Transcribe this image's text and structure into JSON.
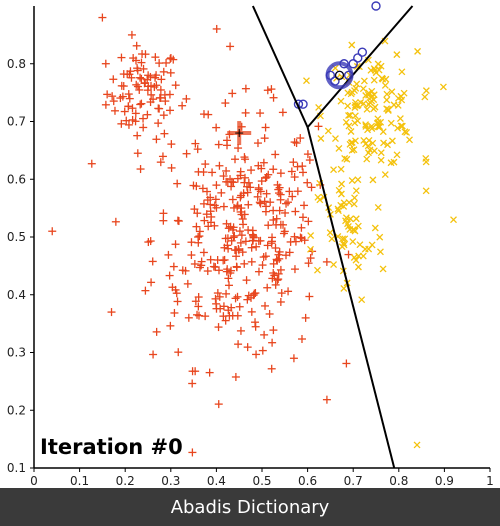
{
  "chart_data": {
    "type": "scatter",
    "title": "",
    "xlabel": "",
    "ylabel": "",
    "xlim": [
      0,
      1.0
    ],
    "ylim": [
      0.1,
      0.9
    ],
    "x_ticks": [
      "0",
      "0.1",
      "0.2",
      "0.3",
      "0.4",
      "0.5",
      "0.6",
      "0.7",
      "0.8",
      "0.9",
      "1"
    ],
    "y_ticks": [
      "0.1",
      "0.2",
      "0.3",
      "0.4",
      "0.5",
      "0.6",
      "0.7",
      "0.8"
    ],
    "grid": false,
    "annotation": "Iteration #0",
    "series": [
      {
        "marker": "plus",
        "color": "#e8461e",
        "generated": true,
        "clusters": [
          {
            "cx": 0.24,
            "cy": 0.75,
            "sx": 0.04,
            "sy": 0.04,
            "n": 90
          },
          {
            "cx": 0.44,
            "cy": 0.5,
            "sx": 0.09,
            "sy": 0.11,
            "n": 300
          },
          {
            "cx": 0.53,
            "cy": 0.52,
            "sx": 0.05,
            "sy": 0.08,
            "n": 50
          }
        ],
        "points": [
          [
            0.04,
            0.51
          ],
          [
            0.15,
            0.88
          ],
          [
            0.17,
            0.37
          ],
          [
            0.43,
            0.83
          ],
          [
            0.57,
            0.29
          ]
        ]
      },
      {
        "marker": "x",
        "color": "#f4c20d",
        "generated": true,
        "clusters": [
          {
            "cx": 0.74,
            "cy": 0.72,
            "sx": 0.05,
            "sy": 0.05,
            "n": 140
          },
          {
            "cx": 0.69,
            "cy": 0.5,
            "sx": 0.04,
            "sy": 0.06,
            "n": 60
          }
        ],
        "points": [
          [
            0.92,
            0.53
          ],
          [
            0.84,
            0.14
          ],
          [
            0.86,
            0.63
          ],
          [
            0.86,
            0.58
          ]
        ]
      },
      {
        "marker": "circle",
        "color": "#3a3ab8",
        "points": [
          [
            0.75,
            0.9
          ],
          [
            0.68,
            0.8
          ],
          [
            0.69,
            0.78
          ],
          [
            0.7,
            0.8
          ],
          [
            0.71,
            0.81
          ],
          [
            0.72,
            0.82
          ],
          [
            0.67,
            0.78
          ],
          [
            0.66,
            0.77
          ],
          [
            0.65,
            0.78
          ],
          [
            0.58,
            0.73
          ],
          [
            0.59,
            0.73
          ]
        ]
      }
    ],
    "centroids": [
      {
        "marker": "plus",
        "color": "#e8461e",
        "x": 0.45,
        "y": 0.68
      },
      {
        "marker": "circle",
        "color": "#3a3ab8",
        "x": 0.67,
        "y": 0.78
      }
    ],
    "boundaries": [
      {
        "from": [
          0.48,
          0.9
        ],
        "to": [
          0.6,
          0.69
        ]
      },
      {
        "from": [
          0.6,
          0.69
        ],
        "to": [
          0.83,
          0.9
        ]
      },
      {
        "from": [
          0.6,
          0.69
        ],
        "to": [
          0.79,
          0.1
        ]
      }
    ]
  },
  "footer": {
    "text": "Abadis Dictionary",
    "bg": "#3a3a3a"
  }
}
